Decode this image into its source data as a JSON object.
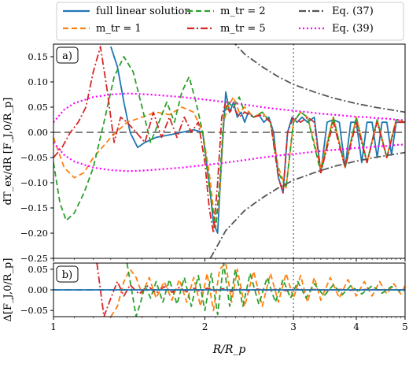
{
  "legend": {
    "entries": [
      {
        "label": "full linear solution",
        "color": "#1f77b4",
        "dash": "solid"
      },
      {
        "label": "m_tr = 1",
        "color": "#ff7f0e",
        "dash": "dashed"
      },
      {
        "label": "m_tr = 2",
        "color": "#2ca02c",
        "dash": "dashed"
      },
      {
        "label": "m_tr = 5",
        "color": "#d62728",
        "dash": "dashdot"
      },
      {
        "label": "Eq. (37)",
        "color": "#555555",
        "dash": "dashdot"
      },
      {
        "label": "Eq. (39)",
        "color": "#ff00ff",
        "dash": "dotted"
      }
    ]
  },
  "chart_data": [
    {
      "type": "line",
      "panel_label": "a)",
      "ylabel": "dT_ex/dR [F_J,0/R_p]",
      "xscale": "log",
      "xlim": [
        1,
        5
      ],
      "ylim": [
        -0.25,
        0.175
      ],
      "yticks": [
        -0.25,
        -0.2,
        -0.15,
        -0.1,
        -0.05,
        0.0,
        0.05,
        0.1,
        0.15
      ],
      "ytick_labels": [
        "−0.25",
        "−0.20",
        "−0.15",
        "−0.10",
        "−0.05",
        "0.00",
        "0.05",
        "0.10",
        "0.15"
      ],
      "reference_lines": {
        "horizontal_dashed_y": 0.0,
        "vertical_dotted_x": 3.0
      },
      "series": [
        {
          "name": "full linear solution",
          "color": "#1f77b4",
          "dash": "solid",
          "x": [
            1.3,
            1.34,
            1.38,
            1.42,
            1.47,
            1.52,
            1.6,
            1.7,
            1.8,
            1.9,
            1.98,
            2.04,
            2.08,
            2.12,
            2.16,
            2.2,
            2.24,
            2.28,
            2.32,
            2.36,
            2.4,
            2.44,
            2.5,
            2.56,
            2.62,
            2.68,
            2.74,
            2.8,
            2.86,
            2.92,
            2.98,
            3.05,
            3.12,
            3.2,
            3.3,
            3.4,
            3.5,
            3.6,
            3.7,
            3.8,
            3.9,
            4.0,
            4.1,
            4.2,
            4.3,
            4.4,
            4.5,
            4.6,
            4.7,
            4.8,
            4.9,
            4.97
          ],
          "y": [
            0.17,
            0.13,
            0.06,
            0.0,
            -0.03,
            -0.02,
            -0.01,
            -0.005,
            0.0,
            0.005,
            0.0,
            -0.1,
            -0.18,
            -0.2,
            -0.05,
            0.08,
            0.04,
            0.06,
            0.03,
            0.04,
            0.02,
            0.04,
            0.03,
            0.035,
            0.02,
            0.03,
            0.0,
            -0.09,
            -0.12,
            0.0,
            0.03,
            0.02,
            0.03,
            0.02,
            0.03,
            -0.08,
            0.02,
            0.025,
            0.02,
            -0.07,
            0.02,
            0.02,
            -0.06,
            0.02,
            0.02,
            -0.05,
            0.02,
            0.02,
            -0.045,
            0.02,
            0.02,
            0.02
          ]
        },
        {
          "name": "m_tr = 1",
          "color": "#ff7f0e",
          "dash": "dashed",
          "x": [
            1.0,
            1.05,
            1.1,
            1.15,
            1.2,
            1.25,
            1.3,
            1.4,
            1.5,
            1.6,
            1.7,
            1.8,
            1.9,
            1.98,
            2.04,
            2.1,
            2.14,
            2.18,
            2.22,
            2.28,
            2.34,
            2.4,
            2.5,
            2.6,
            2.7,
            2.8,
            2.9,
            3.0,
            3.1,
            3.2,
            3.4,
            3.6,
            3.8,
            4.0,
            4.2,
            4.4,
            4.6,
            4.8,
            5.0
          ],
          "y": [
            -0.01,
            -0.07,
            -0.09,
            -0.08,
            -0.05,
            -0.03,
            -0.01,
            0.02,
            0.03,
            0.04,
            0.035,
            0.05,
            0.04,
            0.0,
            -0.08,
            -0.19,
            -0.12,
            0.02,
            0.05,
            0.07,
            0.04,
            0.05,
            0.03,
            0.04,
            0.02,
            -0.07,
            -0.11,
            0.02,
            0.04,
            0.03,
            -0.07,
            0.03,
            -0.07,
            0.03,
            -0.06,
            0.025,
            -0.05,
            0.025,
            0.02
          ]
        },
        {
          "name": "m_tr = 2",
          "color": "#2ca02c",
          "dash": "dashed",
          "x": [
            1.0,
            1.03,
            1.06,
            1.1,
            1.15,
            1.2,
            1.26,
            1.32,
            1.38,
            1.44,
            1.5,
            1.56,
            1.62,
            1.68,
            1.74,
            1.8,
            1.86,
            1.92,
            1.98,
            2.04,
            2.1,
            2.14,
            2.18,
            2.22,
            2.28,
            2.34,
            2.4,
            2.5,
            2.6,
            2.7,
            2.8,
            2.9,
            3.0,
            3.1,
            3.2,
            3.4,
            3.6,
            3.8,
            4.0,
            4.2,
            4.4,
            4.6,
            4.8,
            5.0
          ],
          "y": [
            -0.06,
            -0.14,
            -0.175,
            -0.16,
            -0.12,
            -0.07,
            0.02,
            0.11,
            0.15,
            0.12,
            0.05,
            -0.02,
            0.02,
            0.06,
            0.02,
            0.08,
            0.11,
            0.06,
            0.0,
            -0.11,
            -0.19,
            -0.1,
            0.03,
            0.06,
            0.05,
            0.07,
            0.04,
            0.03,
            0.04,
            0.02,
            -0.08,
            -0.11,
            0.02,
            0.04,
            0.03,
            -0.08,
            0.03,
            -0.07,
            0.03,
            -0.06,
            0.025,
            -0.05,
            0.025,
            0.02
          ]
        },
        {
          "name": "m_tr = 5",
          "color": "#d62728",
          "dash": "dashdot",
          "x": [
            1.0,
            1.04,
            1.08,
            1.12,
            1.16,
            1.2,
            1.24,
            1.28,
            1.32,
            1.36,
            1.4,
            1.46,
            1.52,
            1.58,
            1.64,
            1.7,
            1.76,
            1.82,
            1.88,
            1.94,
            2.0,
            2.04,
            2.08,
            2.12,
            2.16,
            2.2,
            2.24,
            2.28,
            2.34,
            2.4,
            2.5,
            2.6,
            2.7,
            2.8,
            2.86,
            2.92,
            3.0,
            3.1,
            3.2,
            3.3,
            3.4,
            3.6,
            3.8,
            4.0,
            4.2,
            4.4,
            4.6,
            4.8,
            5.0
          ],
          "y": [
            -0.05,
            -0.03,
            0.0,
            0.02,
            0.05,
            0.12,
            0.17,
            0.08,
            -0.02,
            0.03,
            0.02,
            0.0,
            -0.02,
            0.04,
            -0.01,
            0.03,
            -0.01,
            0.03,
            0.0,
            0.02,
            -0.06,
            -0.15,
            -0.2,
            -0.1,
            0.03,
            0.06,
            0.04,
            0.05,
            0.03,
            0.04,
            0.03,
            0.035,
            0.02,
            -0.09,
            -0.12,
            0.0,
            0.03,
            0.02,
            0.03,
            0.02,
            -0.08,
            0.02,
            -0.07,
            0.02,
            -0.06,
            0.02,
            -0.05,
            0.02,
            0.02
          ]
        },
        {
          "name": "Eq. (37)",
          "color": "#555555",
          "dash": "dashdot",
          "mirror": true,
          "x": [
            2.05,
            2.2,
            2.4,
            2.6,
            2.8,
            3.0,
            3.3,
            3.6,
            4.0,
            4.4,
            4.8,
            5.0
          ],
          "y": [
            0.25,
            0.195,
            0.155,
            0.13,
            0.11,
            0.095,
            0.08,
            0.068,
            0.057,
            0.049,
            0.043,
            0.04
          ]
        },
        {
          "name": "Eq. (39)",
          "color": "#ff00ff",
          "dash": "dotted",
          "mirror": true,
          "x": [
            1.0,
            1.05,
            1.1,
            1.2,
            1.3,
            1.4,
            1.5,
            1.6,
            1.8,
            2.0,
            2.2,
            2.4,
            2.6,
            2.8,
            3.0,
            3.2,
            3.4,
            3.6,
            3.8,
            4.0,
            4.2,
            4.4,
            4.6,
            4.8,
            5.0
          ],
          "y": [
            0.02,
            0.045,
            0.058,
            0.07,
            0.075,
            0.077,
            0.076,
            0.074,
            0.07,
            0.065,
            0.06,
            0.055,
            0.05,
            0.046,
            0.043,
            0.04,
            0.037,
            0.035,
            0.033,
            0.031,
            0.03,
            0.028,
            0.027,
            0.025,
            0.024
          ]
        }
      ]
    },
    {
      "type": "line",
      "panel_label": "b)",
      "ylabel": "Δ[F_J,0/R_p]",
      "xlabel": "R/R_p",
      "xscale": "log",
      "xlim": [
        1,
        5
      ],
      "ylim": [
        -0.065,
        0.065
      ],
      "yticks": [
        -0.05,
        0.0,
        0.05
      ],
      "ytick_labels": [
        "−0.05",
        "0.00",
        "0.05"
      ],
      "xticks": [
        1,
        2,
        3,
        4,
        5
      ],
      "xtick_labels": [
        "1",
        "2",
        "3",
        "4",
        "5"
      ],
      "reference_lines": {
        "horizontal_dashed_y": 0.0,
        "vertical_dotted_x": 3.0
      },
      "series": [
        {
          "name": "m_tr = 1",
          "color": "#ff7f0e",
          "dash": "dashed",
          "x": [
            1.3,
            1.34,
            1.38,
            1.42,
            1.46,
            1.5,
            1.55,
            1.6,
            1.66,
            1.72,
            1.78,
            1.84,
            1.9,
            1.96,
            2.02,
            2.08,
            2.14,
            2.2,
            2.26,
            2.32,
            2.4,
            2.5,
            2.6,
            2.7,
            2.8,
            2.9,
            3.0,
            3.1,
            3.2,
            3.3,
            3.4,
            3.55,
            3.7,
            3.85,
            4.0,
            4.15,
            4.3,
            4.45,
            4.6,
            4.75,
            4.9,
            5.0
          ],
          "y": [
            -0.065,
            -0.04,
            0.02,
            0.05,
            0.03,
            -0.01,
            0.03,
            -0.02,
            0.02,
            -0.025,
            0.025,
            -0.03,
            0.03,
            -0.04,
            0.04,
            -0.05,
            0.05,
            0.065,
            -0.03,
            0.05,
            -0.04,
            0.045,
            -0.04,
            0.04,
            -0.03,
            0.04,
            -0.02,
            0.035,
            -0.03,
            0.03,
            -0.025,
            0.03,
            -0.02,
            0.025,
            -0.015,
            0.02,
            -0.015,
            0.02,
            -0.01,
            0.015,
            -0.01,
            0.01
          ]
        },
        {
          "name": "m_tr = 2",
          "color": "#2ca02c",
          "dash": "dashed",
          "x": [
            1.4,
            1.43,
            1.46,
            1.49,
            1.52,
            1.56,
            1.6,
            1.65,
            1.7,
            1.76,
            1.82,
            1.88,
            1.94,
            2.0,
            2.06,
            2.12,
            2.18,
            2.24,
            2.3,
            2.38,
            2.46,
            2.56,
            2.66,
            2.76,
            2.86,
            2.96,
            3.06,
            3.18,
            3.3,
            3.45,
            3.6,
            3.75,
            3.9,
            4.1,
            4.3,
            4.5,
            4.7,
            4.9,
            5.0
          ],
          "y": [
            0.065,
            0.0,
            -0.065,
            -0.03,
            0.01,
            -0.02,
            0.02,
            -0.03,
            0.025,
            -0.035,
            0.03,
            -0.04,
            0.035,
            -0.05,
            0.04,
            -0.06,
            0.065,
            -0.04,
            0.05,
            -0.04,
            0.04,
            -0.035,
            0.03,
            -0.03,
            0.025,
            -0.02,
            0.02,
            -0.02,
            0.015,
            -0.015,
            0.012,
            -0.012,
            0.01,
            -0.01,
            0.01,
            -0.008,
            0.008,
            -0.005,
            0.0
          ]
        },
        {
          "name": "m_tr = 5",
          "color": "#d62728",
          "dash": "dashdot",
          "x": [
            1.22,
            1.24,
            1.26,
            1.3,
            1.34,
            1.38,
            1.42,
            1.48,
            1.54,
            1.6,
            1.66,
            1.72,
            1.78,
            1.84,
            1.9,
            1.96,
            2.02,
            2.1,
            2.18,
            2.26,
            2.34,
            2.44,
            2.54,
            2.66,
            2.78,
            2.9,
            3.02,
            3.15,
            3.3,
            3.5,
            3.7,
            3.9,
            4.2,
            4.5,
            4.8,
            5.0
          ],
          "y": [
            0.065,
            0.0,
            -0.065,
            -0.02,
            0.02,
            -0.015,
            0.012,
            -0.01,
            0.01,
            -0.008,
            0.008,
            -0.006,
            0.006,
            -0.005,
            0.004,
            -0.004,
            0.004,
            -0.003,
            0.003,
            -0.003,
            0.003,
            -0.002,
            0.002,
            -0.002,
            0.002,
            -0.002,
            0.002,
            -0.001,
            0.001,
            -0.001,
            0.001,
            -0.001,
            0.001,
            0.0,
            0.0,
            0.0
          ]
        },
        {
          "name": "full linear solution",
          "color": "#1f77b4",
          "dash": "solid",
          "x": [
            1.0,
            5.0
          ],
          "y": [
            0.0,
            0.0
          ]
        }
      ]
    }
  ]
}
